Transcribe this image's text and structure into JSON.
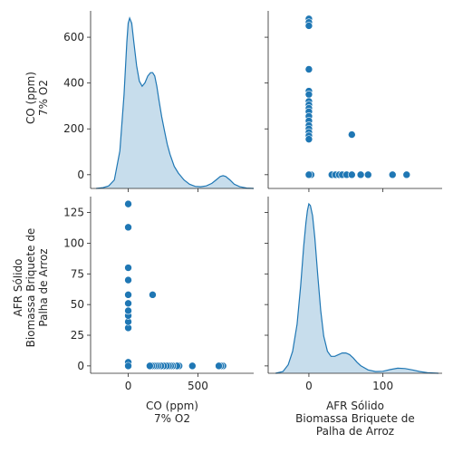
{
  "chart_data": {
    "type": "scatter",
    "layout": "pairplot",
    "variables": [
      {
        "key": "co",
        "label_lines": [
          "CO (ppm)",
          "7% O2"
        ],
        "ticks": [
          0,
          200,
          400,
          600
        ],
        "tick_labels": [
          "0",
          "200",
          "400",
          "600"
        ],
        "lim": [
          -60,
          715
        ]
      },
      {
        "key": "afr",
        "label_lines": [
          "AFR Sólido",
          "Biomassa Briquete de",
          "Palha de Arroz"
        ],
        "ticks": [
          0,
          25,
          50,
          75,
          100,
          125
        ],
        "tick_labels": [
          "0",
          "25",
          "50",
          "75",
          "100",
          "125"
        ],
        "lim": [
          -6,
          138
        ]
      }
    ],
    "diag_ranges": {
      "co": {
        "lim": [
          -270,
          900
        ],
        "ticks": [
          0,
          500
        ],
        "tick_labels": [
          "0",
          "500"
        ]
      },
      "afr": {
        "lim": [
          -55,
          180
        ],
        "ticks": [
          0,
          100
        ],
        "tick_labels": [
          "0",
          "100"
        ]
      }
    },
    "pairs": [
      {
        "co": 680,
        "afr": 0
      },
      {
        "co": 665,
        "afr": 0
      },
      {
        "co": 650,
        "afr": 0
      },
      {
        "co": 460,
        "afr": 0
      },
      {
        "co": 365,
        "afr": 0
      },
      {
        "co": 350,
        "afr": 0
      },
      {
        "co": 320,
        "afr": 0
      },
      {
        "co": 305,
        "afr": 0
      },
      {
        "co": 290,
        "afr": 0
      },
      {
        "co": 275,
        "afr": 0
      },
      {
        "co": 255,
        "afr": 0
      },
      {
        "co": 235,
        "afr": 0
      },
      {
        "co": 215,
        "afr": 0
      },
      {
        "co": 200,
        "afr": 0
      },
      {
        "co": 185,
        "afr": 0
      },
      {
        "co": 170,
        "afr": 0
      },
      {
        "co": 155,
        "afr": 0
      },
      {
        "co": 0,
        "afr": 3
      },
      {
        "co": 0,
        "afr": 0
      },
      {
        "co": 0,
        "afr": 31
      },
      {
        "co": 0,
        "afr": 36
      },
      {
        "co": 0,
        "afr": 41
      },
      {
        "co": 0,
        "afr": 45
      },
      {
        "co": 0,
        "afr": 51
      },
      {
        "co": 0,
        "afr": 58
      },
      {
        "co": 0,
        "afr": 70
      },
      {
        "co": 0,
        "afr": 80
      },
      {
        "co": 0,
        "afr": 113
      },
      {
        "co": 0,
        "afr": 132
      },
      {
        "co": 175,
        "afr": 58
      }
    ],
    "kde": {
      "co": {
        "x": [
          -230,
          -180,
          -140,
          -100,
          -60,
          -30,
          -10,
          0,
          10,
          25,
          40,
          60,
          80,
          100,
          120,
          140,
          160,
          175,
          190,
          205,
          220,
          240,
          260,
          280,
          300,
          330,
          360,
          400,
          440,
          480,
          520,
          560,
          600,
          630,
          660,
          680,
          700,
          730,
          760,
          800,
          850,
          900
        ],
        "density": [
          0.0,
          0.005,
          0.015,
          0.05,
          0.22,
          0.55,
          0.86,
          0.97,
          1.0,
          0.97,
          0.86,
          0.72,
          0.63,
          0.6,
          0.62,
          0.66,
          0.68,
          0.68,
          0.66,
          0.6,
          0.52,
          0.42,
          0.34,
          0.26,
          0.2,
          0.13,
          0.09,
          0.05,
          0.025,
          0.012,
          0.01,
          0.015,
          0.03,
          0.05,
          0.07,
          0.075,
          0.07,
          0.05,
          0.025,
          0.01,
          0.002,
          0.0
        ]
      },
      "afr": {
        "x": [
          -45,
          -35,
          -28,
          -22,
          -16,
          -11,
          -7,
          -4,
          -2,
          0,
          2,
          5,
          8,
          12,
          16,
          20,
          25,
          30,
          35,
          40,
          45,
          50,
          55,
          60,
          65,
          70,
          80,
          90,
          100,
          110,
          120,
          130,
          140,
          150,
          160,
          175
        ],
        "density": [
          0.0,
          0.01,
          0.05,
          0.13,
          0.29,
          0.52,
          0.75,
          0.89,
          0.96,
          1.0,
          0.99,
          0.93,
          0.8,
          0.58,
          0.37,
          0.22,
          0.13,
          0.1,
          0.1,
          0.11,
          0.12,
          0.12,
          0.11,
          0.09,
          0.065,
          0.045,
          0.02,
          0.01,
          0.012,
          0.022,
          0.03,
          0.028,
          0.02,
          0.01,
          0.004,
          0.0
        ]
      }
    }
  }
}
